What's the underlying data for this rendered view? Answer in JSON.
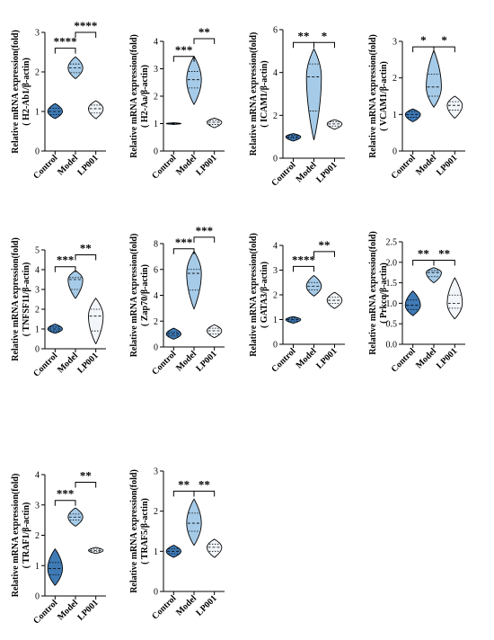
{
  "colors": {
    "control": "#3f7ab5",
    "model": "#a6cbe8",
    "lp001": "#f2f6fb",
    "stroke": "#000000"
  },
  "chart_data": [
    {
      "type": "violin",
      "ylabel": [
        "Relative mRNA expression(fold)",
        "( H2-Ab1/β-actin)"
      ],
      "categories": [
        "Control",
        "Model",
        "LP001"
      ],
      "ylim": [
        0,
        3
      ],
      "yticks": [
        0,
        1,
        2,
        3
      ],
      "series": [
        {
          "category": "Control",
          "min": 0.82,
          "max": 1.2,
          "median": 1.0,
          "q1": 0.92,
          "q3": 1.08
        },
        {
          "category": "Model",
          "min": 1.83,
          "max": 2.38,
          "median": 2.1,
          "q1": 1.98,
          "q3": 2.2
        },
        {
          "category": "LP001",
          "min": 0.82,
          "max": 1.27,
          "median": 1.07,
          "q1": 0.96,
          "q3": 1.16
        }
      ],
      "brackets": [
        {
          "from": 0,
          "to": 1,
          "y": 2.6,
          "label": "****"
        },
        {
          "from": 1,
          "to": 2,
          "y": 3.0,
          "label": "****"
        }
      ]
    },
    {
      "type": "violin",
      "ylabel": [
        "Relative mRNA expression(fold)",
        "( H2-Aa/β-actin)"
      ],
      "categories": [
        "Control",
        "Model",
        "LP001"
      ],
      "ylim": [
        0,
        4
      ],
      "yticks": [
        0,
        1,
        2,
        3,
        4
      ],
      "series": [
        {
          "category": "Control",
          "min": 0.97,
          "max": 1.03,
          "median": 1.0,
          "q1": 0.99,
          "q3": 1.01
        },
        {
          "category": "Model",
          "min": 1.7,
          "max": 3.45,
          "median": 2.6,
          "q1": 2.3,
          "q3": 2.9
        },
        {
          "category": "LP001",
          "min": 0.85,
          "max": 1.2,
          "median": 1.05,
          "q1": 0.97,
          "q3": 1.12
        }
      ],
      "brackets": [
        {
          "from": 0,
          "to": 1,
          "y": 3.45,
          "label": "***"
        },
        {
          "from": 1,
          "to": 2,
          "y": 4.1,
          "label": "**"
        }
      ]
    },
    {
      "type": "violin",
      "ylabel": [
        "Relative mRNA expression(fold)",
        "( ICAM1/β-actin)"
      ],
      "categories": [
        "Control",
        "Model",
        "LP001"
      ],
      "ylim": [
        0,
        6
      ],
      "yticks": [
        0,
        2,
        4,
        6
      ],
      "series": [
        {
          "category": "Control",
          "min": 0.8,
          "max": 1.15,
          "median": 1.0,
          "q1": 0.93,
          "q3": 1.07
        },
        {
          "category": "Model",
          "min": 0.85,
          "max": 5.1,
          "median": 3.8,
          "q1": 2.2,
          "q3": 4.4
        },
        {
          "category": "LP001",
          "min": 1.35,
          "max": 1.8,
          "median": 1.6,
          "q1": 1.5,
          "q3": 1.7
        }
      ],
      "brackets": [
        {
          "from": 0,
          "to": 1,
          "y": 5.4,
          "label": "**"
        },
        {
          "from": 1,
          "to": 2,
          "y": 5.4,
          "label": "*"
        }
      ]
    },
    {
      "type": "violin",
      "ylabel": [
        "Relative mRNA expression(fold)",
        "( VCAM1/β-actin)"
      ],
      "categories": [
        "Control",
        "Model",
        "LP001"
      ],
      "ylim": [
        0,
        3
      ],
      "yticks": [
        0,
        1,
        2,
        3
      ],
      "series": [
        {
          "category": "Control",
          "min": 0.8,
          "max": 1.15,
          "median": 1.0,
          "q1": 0.92,
          "q3": 1.08
        },
        {
          "category": "Model",
          "min": 1.2,
          "max": 2.75,
          "median": 1.75,
          "q1": 1.5,
          "q3": 2.1
        },
        {
          "category": "LP001",
          "min": 0.9,
          "max": 1.5,
          "median": 1.25,
          "q1": 1.12,
          "q3": 1.35
        }
      ],
      "brackets": [
        {
          "from": 0,
          "to": 1,
          "y": 2.85,
          "label": "*"
        },
        {
          "from": 1,
          "to": 2,
          "y": 2.85,
          "label": "*"
        }
      ]
    },
    {
      "type": "violin",
      "ylabel": [
        "Relative mRNA expression(fold)",
        "( TNFSF11/β-actin)"
      ],
      "categories": [
        "Control",
        "Model",
        "LP001"
      ],
      "ylim": [
        0,
        5
      ],
      "yticks": [
        0,
        1,
        2,
        3,
        4,
        5
      ],
      "series": [
        {
          "category": "Control",
          "min": 0.78,
          "max": 1.25,
          "median": 1.0,
          "q1": 0.9,
          "q3": 1.1
        },
        {
          "category": "Model",
          "min": 2.55,
          "max": 3.95,
          "median": 3.5,
          "q1": 3.0,
          "q3": 3.6
        },
        {
          "category": "LP001",
          "min": 0.25,
          "max": 2.55,
          "median": 1.65,
          "q1": 0.9,
          "q3": 2.0
        }
      ],
      "brackets": [
        {
          "from": 0,
          "to": 1,
          "y": 4.15,
          "label": "***"
        },
        {
          "from": 1,
          "to": 2,
          "y": 4.75,
          "label": "**"
        }
      ]
    },
    {
      "type": "violin",
      "ylabel": [
        "Relative mRNA expression(fold)",
        "( Zap70/β-actin)"
      ],
      "categories": [
        "Control",
        "Model",
        "LP001"
      ],
      "ylim": [
        0,
        8
      ],
      "yticks": [
        0,
        2,
        4,
        6,
        8
      ],
      "series": [
        {
          "category": "Control",
          "min": 0.6,
          "max": 1.45,
          "median": 1.0,
          "q1": 0.85,
          "q3": 1.15
        },
        {
          "category": "Model",
          "min": 2.95,
          "max": 7.4,
          "median": 5.7,
          "q1": 4.4,
          "q3": 6.0
        },
        {
          "category": "LP001",
          "min": 0.72,
          "max": 1.72,
          "median": 1.25,
          "q1": 1.0,
          "q3": 1.45
        }
      ],
      "brackets": [
        {
          "from": 0,
          "to": 1,
          "y": 7.6,
          "label": "***"
        },
        {
          "from": 1,
          "to": 2,
          "y": 8.5,
          "label": "***"
        }
      ]
    },
    {
      "type": "violin",
      "ylabel": [
        "Relative mRNA expression(fold)",
        "( GATA3/β-actin)"
      ],
      "categories": [
        "Control",
        "Model",
        "LP001"
      ],
      "ylim": [
        0,
        4
      ],
      "yticks": [
        0,
        1,
        2,
        3,
        4
      ],
      "series": [
        {
          "category": "Control",
          "min": 0.85,
          "max": 1.12,
          "median": 1.0,
          "q1": 0.94,
          "q3": 1.06
        },
        {
          "category": "Model",
          "min": 1.95,
          "max": 2.78,
          "median": 2.35,
          "q1": 2.2,
          "q3": 2.5
        },
        {
          "category": "LP001",
          "min": 1.45,
          "max": 2.1,
          "median": 1.78,
          "q1": 1.65,
          "q3": 1.9
        }
      ],
      "brackets": [
        {
          "from": 0,
          "to": 1,
          "y": 3.15,
          "label": "****"
        },
        {
          "from": 1,
          "to": 2,
          "y": 3.75,
          "label": "**"
        }
      ]
    },
    {
      "type": "violin",
      "ylabel": [
        "Relative mRNA expression(fold)",
        "( Prkcq/β-actin)"
      ],
      "categories": [
        "Control",
        "Model",
        "LP001"
      ],
      "ylim": [
        0,
        2.5
      ],
      "yticks": [
        0.0,
        0.5,
        1.0,
        1.5,
        2.0,
        2.5
      ],
      "ytick_labels": [
        "0.0",
        "0.5",
        "1.0",
        "1.5",
        "2.0",
        "2.5"
      ],
      "series": [
        {
          "category": "Control",
          "min": 0.7,
          "max": 1.3,
          "median": 0.95,
          "q1": 0.85,
          "q3": 1.08
        },
        {
          "category": "Model",
          "min": 1.5,
          "max": 1.87,
          "median": 1.75,
          "q1": 1.65,
          "q3": 1.8
        },
        {
          "category": "LP001",
          "min": 0.62,
          "max": 1.62,
          "median": 1.0,
          "q1": 0.88,
          "q3": 1.2
        }
      ],
      "brackets": [
        {
          "from": 0,
          "to": 1,
          "y": 2.05,
          "label": "**"
        },
        {
          "from": 1,
          "to": 2,
          "y": 2.05,
          "label": "**"
        }
      ]
    },
    {
      "type": "violin",
      "ylabel": [
        "Relative mRNA expression(fold)",
        "( TRAF1/β-actin)"
      ],
      "categories": [
        "Control",
        "Model",
        "LP001"
      ],
      "ylim": [
        0,
        4
      ],
      "yticks": [
        0,
        1,
        2,
        3,
        4
      ],
      "series": [
        {
          "category": "Control",
          "min": 0.35,
          "max": 1.55,
          "median": 0.9,
          "q1": 0.7,
          "q3": 1.1
        },
        {
          "category": "Model",
          "min": 2.3,
          "max": 2.9,
          "median": 2.6,
          "q1": 2.5,
          "q3": 2.7
        },
        {
          "category": "LP001",
          "min": 1.4,
          "max": 1.6,
          "median": 1.5,
          "q1": 1.46,
          "q3": 1.54
        }
      ],
      "brackets": [
        {
          "from": 0,
          "to": 1,
          "y": 3.15,
          "label": "***"
        },
        {
          "from": 1,
          "to": 2,
          "y": 3.75,
          "label": "**"
        }
      ]
    },
    {
      "type": "violin",
      "ylabel": [
        "Relative mRNA expression(fold)",
        "( TRAF5/β-actin)"
      ],
      "categories": [
        "Control",
        "Model",
        "LP001"
      ],
      "ylim": [
        0,
        3
      ],
      "yticks": [
        0,
        1,
        2,
        3
      ],
      "series": [
        {
          "category": "Control",
          "min": 0.85,
          "max": 1.15,
          "median": 1.0,
          "q1": 0.94,
          "q3": 1.06
        },
        {
          "category": "Model",
          "min": 1.15,
          "max": 2.3,
          "median": 1.7,
          "q1": 1.5,
          "q3": 1.95
        },
        {
          "category": "LP001",
          "min": 0.85,
          "max": 1.3,
          "median": 1.1,
          "q1": 1.0,
          "q3": 1.18
        }
      ],
      "brackets": [
        {
          "from": 0,
          "to": 1,
          "y": 2.5,
          "label": "**"
        },
        {
          "from": 1,
          "to": 2,
          "y": 2.5,
          "label": "**"
        }
      ]
    }
  ]
}
